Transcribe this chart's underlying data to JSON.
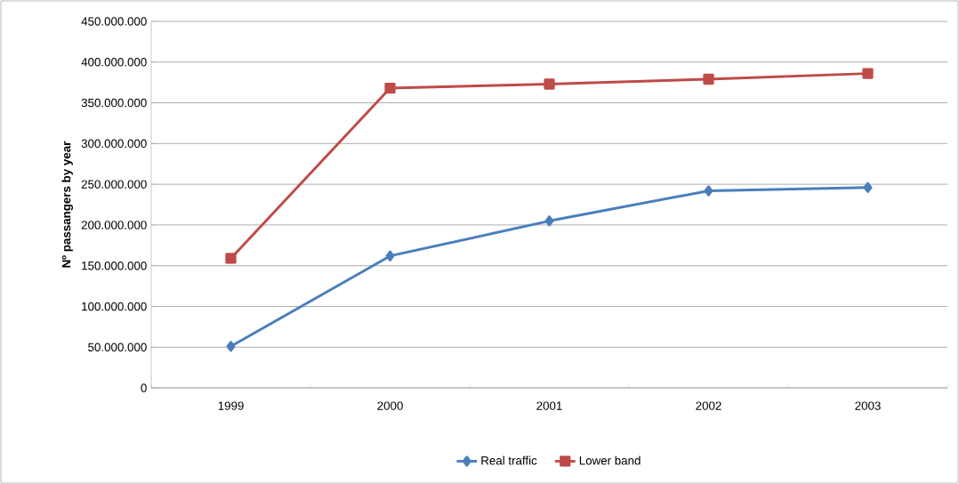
{
  "chart_data": {
    "type": "line",
    "ylabel": "Nº passangers by year",
    "categories": [
      "1999",
      "2000",
      "2001",
      "2002",
      "2003"
    ],
    "series": [
      {
        "name": "Real traffic",
        "color": "#4a7ebb",
        "marker": "diamond",
        "values": [
          51000000,
          162000000,
          205000000,
          242000000,
          246000000
        ]
      },
      {
        "name": "Lower band",
        "color": "#be4b48",
        "marker": "square",
        "values": [
          159000000,
          368000000,
          373000000,
          379000000,
          386000000
        ]
      }
    ],
    "ylim": [
      0,
      450000000
    ],
    "yticks": [
      {
        "value": 0,
        "label": "0"
      },
      {
        "value": 50000000,
        "label": "50.000.000"
      },
      {
        "value": 100000000,
        "label": "100.000.000"
      },
      {
        "value": 150000000,
        "label": "150.000.000"
      },
      {
        "value": 200000000,
        "label": "200.000.000"
      },
      {
        "value": 250000000,
        "label": "250.000.000"
      },
      {
        "value": 300000000,
        "label": "300.000.000"
      },
      {
        "value": 350000000,
        "label": "350.000.000"
      },
      {
        "value": 400000000,
        "label": "400.000.000"
      },
      {
        "value": 450000000,
        "label": "450.000.000"
      }
    ],
    "grid": "y",
    "legend": "bottom"
  }
}
